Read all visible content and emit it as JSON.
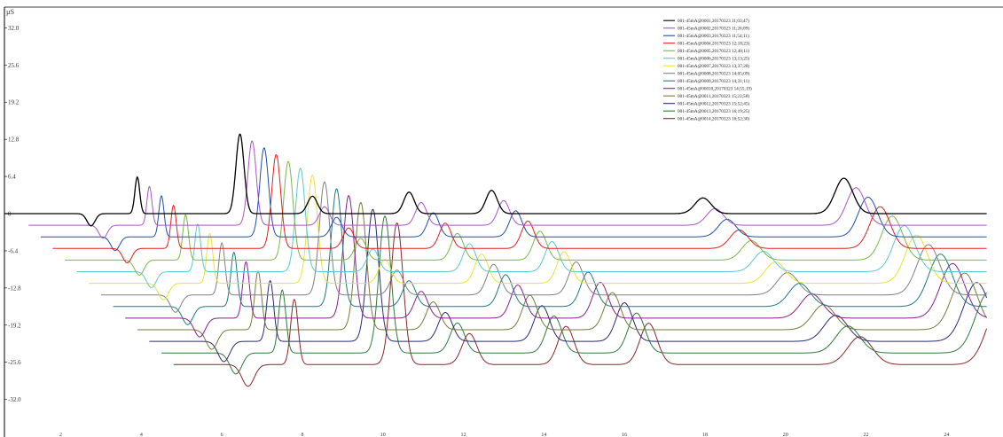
{
  "chart_data": {
    "type": "line",
    "title": "",
    "ylabel": "µS",
    "xlabel": "",
    "y_ticks": [
      "32.0",
      "25.6",
      "19.2",
      "12.8",
      "6.4",
      "0",
      "-6.4",
      "-12.8",
      "-19.2",
      "-25.6",
      "-32.0"
    ],
    "x_ticks": [
      "2",
      "4",
      "6",
      "8",
      "10",
      "12",
      "14",
      "16",
      "18",
      "20",
      "22",
      "24"
    ],
    "xlim": [
      0.6,
      25.0
    ],
    "ylim": [
      -35.0,
      32.0
    ],
    "grid": false,
    "legend_position": "top-right",
    "offset_per_series": {
      "x": 0.3,
      "y": -2.0
    },
    "peaks": [
      {
        "x": 2.75,
        "h": -2.1,
        "w": 0.1
      },
      {
        "x": 3.9,
        "h": 6.3,
        "w": 0.06
      },
      {
        "x": 6.45,
        "h": 13.7,
        "w": 0.1
      },
      {
        "x": 8.25,
        "h": 3.0,
        "w": 0.12
      },
      {
        "x": 10.65,
        "h": 3.7,
        "w": 0.13
      },
      {
        "x": 12.7,
        "h": 4.0,
        "w": 0.14
      },
      {
        "x": 17.95,
        "h": 2.7,
        "w": 0.2
      },
      {
        "x": 21.45,
        "h": 6.1,
        "w": 0.22
      }
    ],
    "series": [
      {
        "name": "001-45mA@0001,20170323 11;03;47)",
        "color": "#000000"
      },
      {
        "name": "001-45mA@0002,20170323 11;26;09)",
        "color": "#a855c7"
      },
      {
        "name": "001-45mA@0003,20170323 11;54;11)",
        "color": "#1f4fa8"
      },
      {
        "name": "001-45mA@0004,20170323 12;18;23)",
        "color": "#e02020"
      },
      {
        "name": "001-45mA@0005,20170323 12;48;11)",
        "color": "#7ab648"
      },
      {
        "name": "001-45mA@0006,20170323 13;13;25)",
        "color": "#5cc8d0"
      },
      {
        "name": "001-45mA@0007,20170323 13;37;28)",
        "color": "#e8e33a"
      },
      {
        "name": "001-45mA@0008,20170323 14;05;09)",
        "color": "#808080"
      },
      {
        "name": "001-45mA@0009,20170323 14;31;11)",
        "color": "#1d7a80"
      },
      {
        "name": "001-45mA@00010,20170323 14;55;19)",
        "color": "#8a1f8a"
      },
      {
        "name": "001-45mA@0011,20170323 15;23;58)",
        "color": "#7a7a38"
      },
      {
        "name": "001-45mA@0012,20170323 15;52;45)",
        "color": "#2a2a72"
      },
      {
        "name": "001-45mA@0013,20170323 16;19;25)",
        "color": "#2e7a3c"
      },
      {
        "name": "001-45mA@0014,20170323 16;52;30)",
        "color": "#8a2828"
      }
    ]
  }
}
